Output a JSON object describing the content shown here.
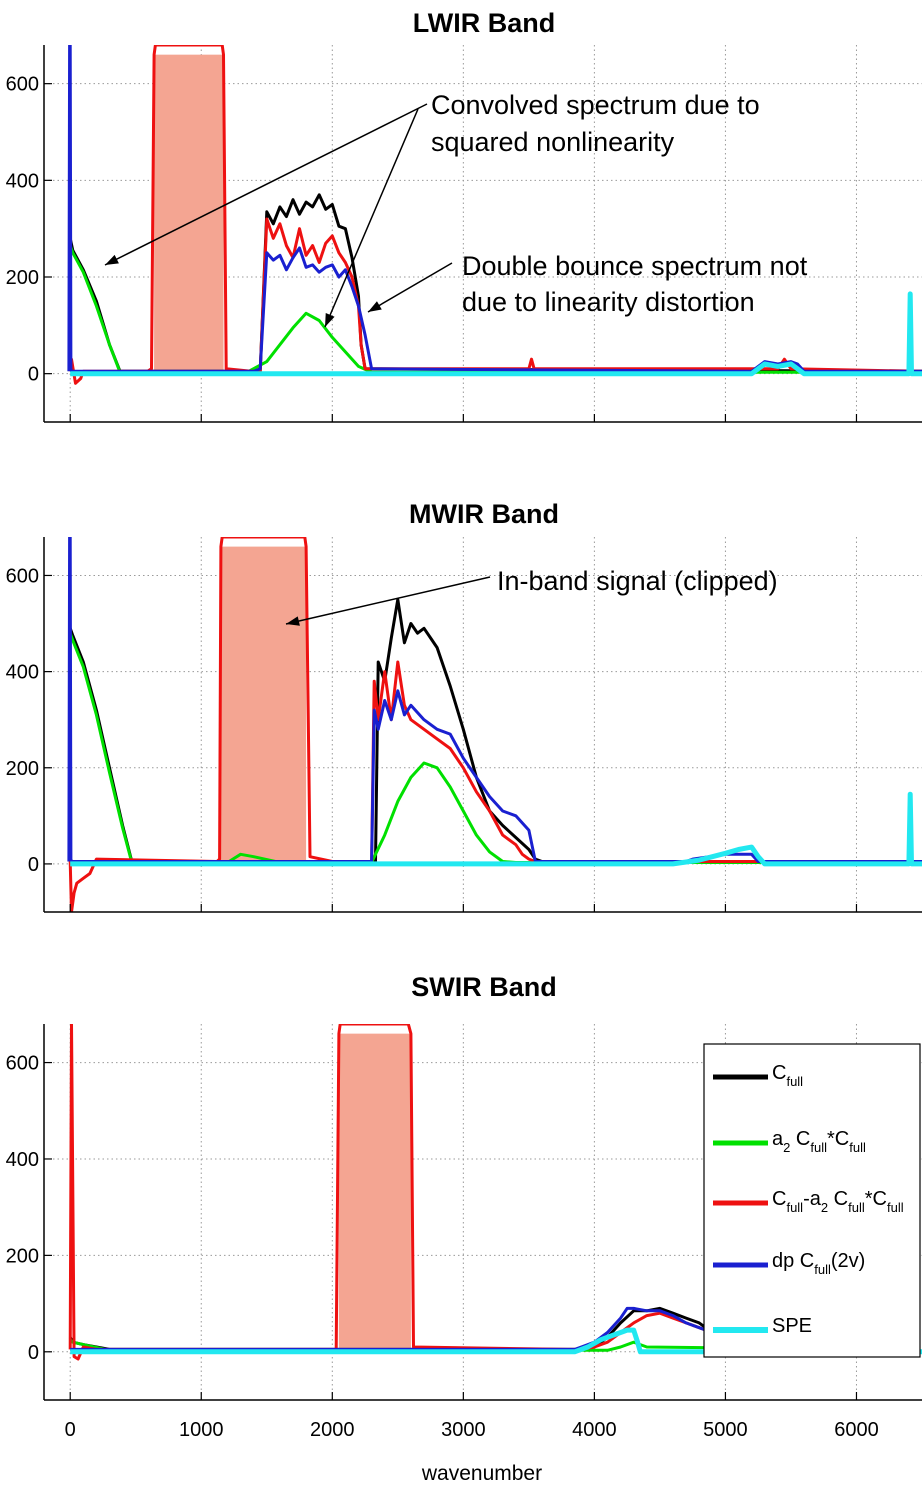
{
  "chart_data": [
    {
      "type": "line",
      "title": "LWIR Band",
      "xlabel": "",
      "ylabel": "",
      "xlim": [
        -200,
        6500
      ],
      "ylim": [
        -100,
        680
      ],
      "yticks": [
        0,
        200,
        400,
        600
      ],
      "xticks": [
        0,
        1000,
        2000,
        3000,
        4000,
        5000,
        6000
      ],
      "grid": true,
      "clipped_band": {
        "x0": 640,
        "x1": 1170,
        "y_top": 660,
        "color": "#f4a592"
      },
      "annotations": [
        {
          "lines": [
            "Convolved spectrum due to",
            "squared nonlinearity"
          ]
        },
        {
          "lines": [
            "Double bounce spectrum not",
            "due to linearity distortion"
          ]
        }
      ],
      "series": [
        {
          "color": "#000000",
          "x": [
            0,
            20,
            100,
            200,
            300,
            380,
            1450,
            1500,
            1550,
            1600,
            1650,
            1700,
            1750,
            1800,
            1850,
            1900,
            1950,
            2000,
            2050,
            2100,
            2150,
            2200,
            2220,
            2250,
            6500
          ],
          "y": [
            280,
            255,
            215,
            150,
            60,
            5,
            5,
            335,
            310,
            345,
            325,
            360,
            330,
            355,
            345,
            370,
            340,
            350,
            305,
            300,
            240,
            160,
            60,
            10,
            5
          ]
        },
        {
          "color": "#00e000",
          "x": [
            0,
            20,
            100,
            200,
            300,
            380,
            1100,
            1350,
            1500,
            1600,
            1700,
            1800,
            1900,
            2000,
            2100,
            2200,
            2300,
            6500
          ],
          "y": [
            265,
            250,
            210,
            140,
            60,
            3,
            3,
            3,
            25,
            60,
            95,
            125,
            110,
            75,
            45,
            15,
            3,
            3
          ]
        },
        {
          "color": "#ee1111",
          "x": [
            0,
            10,
            40,
            80,
            100,
            590,
            620,
            640,
            650,
            1160,
            1170,
            1190,
            1380,
            1400,
            1450,
            1500,
            1550,
            1600,
            1650,
            1700,
            1750,
            1800,
            1850,
            1900,
            1950,
            2000,
            2050,
            2100,
            2150,
            2200,
            2220,
            2250,
            3500,
            3520,
            3540,
            5400,
            5450,
            5500,
            6500
          ],
          "y": [
            5,
            30,
            -20,
            -10,
            5,
            5,
            10,
            660,
            680,
            680,
            660,
            10,
            5,
            5,
            5,
            320,
            280,
            310,
            265,
            240,
            300,
            245,
            265,
            230,
            270,
            285,
            250,
            230,
            200,
            140,
            60,
            10,
            10,
            30,
            10,
            10,
            30,
            10,
            5
          ]
        },
        {
          "color": "#1a20d0",
          "x": [
            -10,
            -5,
            0,
            5,
            10,
            20,
            100,
            1400,
            1450,
            1500,
            1550,
            1600,
            1650,
            1700,
            1750,
            1800,
            1850,
            1900,
            1950,
            2000,
            2050,
            2100,
            2150,
            2200,
            2250,
            2300,
            5200,
            5250,
            5300,
            5400,
            5500,
            5550,
            5600,
            6500
          ],
          "y": [
            5,
            680,
            680,
            10,
            5,
            5,
            5,
            5,
            10,
            250,
            235,
            245,
            215,
            240,
            260,
            220,
            225,
            210,
            220,
            225,
            200,
            215,
            180,
            140,
            80,
            10,
            5,
            15,
            25,
            20,
            25,
            20,
            5,
            5
          ]
        },
        {
          "color": "#22e8f0",
          "x": [
            0,
            5200,
            5250,
            5300,
            5400,
            5500,
            5550,
            5600,
            6400,
            6410,
            6420,
            6500
          ],
          "y": [
            0,
            0,
            10,
            20,
            15,
            20,
            10,
            0,
            0,
            165,
            0,
            0
          ]
        }
      ]
    },
    {
      "type": "line",
      "title": "MWIR Band",
      "xlabel": "",
      "ylabel": "",
      "xlim": [
        -200,
        6500
      ],
      "ylim": [
        -100,
        680
      ],
      "yticks": [
        0,
        200,
        400,
        600
      ],
      "xticks": [
        0,
        1000,
        2000,
        3000,
        4000,
        5000,
        6000
      ],
      "grid": true,
      "clipped_band": {
        "x0": 1150,
        "x1": 1800,
        "y_top": 660,
        "color": "#f4a592"
      },
      "annotations": [
        {
          "lines": [
            "In-band signal (clipped)"
          ]
        }
      ],
      "series": [
        {
          "color": "#000000",
          "x": [
            0,
            20,
            100,
            200,
            300,
            400,
            470,
            2300,
            2330,
            2350,
            2400,
            2450,
            2500,
            2550,
            2600,
            2650,
            2700,
            2750,
            2800,
            2900,
            3000,
            3100,
            3200,
            3300,
            3400,
            3500,
            3550,
            3600,
            6500
          ],
          "y": [
            490,
            475,
            420,
            320,
            200,
            80,
            5,
            5,
            5,
            420,
            380,
            470,
            550,
            460,
            500,
            480,
            490,
            470,
            450,
            370,
            280,
            180,
            110,
            80,
            55,
            30,
            10,
            5,
            5
          ]
        },
        {
          "color": "#00e000",
          "x": [
            0,
            20,
            100,
            200,
            300,
            400,
            470,
            1200,
            1300,
            1400,
            1600,
            2300,
            2400,
            2500,
            2600,
            2700,
            2800,
            2900,
            3000,
            3100,
            3200,
            3300,
            3400,
            6500
          ],
          "y": [
            480,
            465,
            410,
            310,
            190,
            75,
            3,
            3,
            20,
            15,
            3,
            3,
            60,
            130,
            180,
            210,
            200,
            160,
            110,
            60,
            25,
            5,
            3,
            3
          ]
        },
        {
          "color": "#ee1111",
          "x": [
            0,
            10,
            30,
            50,
            100,
            150,
            200,
            1120,
            1140,
            1150,
            1160,
            1790,
            1800,
            1830,
            2000,
            2300,
            2320,
            2350,
            2400,
            2450,
            2500,
            2550,
            2600,
            2700,
            2800,
            2900,
            3000,
            3100,
            3200,
            3300,
            3400,
            3450,
            3500,
            3550,
            6500
          ],
          "y": [
            5,
            -100,
            -60,
            -40,
            -30,
            -20,
            10,
            5,
            10,
            660,
            680,
            680,
            660,
            15,
            5,
            5,
            380,
            300,
            400,
            300,
            420,
            330,
            300,
            280,
            260,
            240,
            200,
            150,
            110,
            60,
            40,
            20,
            10,
            5,
            5
          ]
        },
        {
          "color": "#1a20d0",
          "x": [
            -10,
            -5,
            0,
            5,
            10,
            20,
            2300,
            2320,
            2350,
            2400,
            2450,
            2500,
            2550,
            2600,
            2700,
            2800,
            2900,
            3000,
            3100,
            3200,
            3300,
            3400,
            3500,
            3550,
            4700,
            4750,
            5000,
            5200,
            5250,
            6500
          ],
          "y": [
            5,
            680,
            680,
            10,
            5,
            5,
            5,
            320,
            280,
            340,
            300,
            360,
            310,
            330,
            300,
            280,
            270,
            220,
            180,
            140,
            110,
            100,
            70,
            5,
            5,
            10,
            20,
            20,
            5,
            5
          ]
        },
        {
          "color": "#22e8f0",
          "x": [
            0,
            4600,
            4800,
            5000,
            5100,
            5200,
            5250,
            5300,
            6400,
            6410,
            6420,
            6500
          ],
          "y": [
            0,
            0,
            8,
            22,
            30,
            35,
            15,
            0,
            0,
            145,
            0,
            0
          ]
        }
      ]
    },
    {
      "type": "line",
      "title": "SWIR Band",
      "xlabel": "wavenumber",
      "ylabel": "",
      "xlim": [
        -200,
        6500
      ],
      "ylim": [
        -100,
        680
      ],
      "yticks": [
        0,
        200,
        400,
        600
      ],
      "xticks": [
        0,
        1000,
        2000,
        3000,
        4000,
        5000,
        6000
      ],
      "grid": true,
      "legend_position": "top-right",
      "clipped_band": {
        "x0": 2050,
        "x1": 2600,
        "y_top": 660,
        "color": "#f4a592"
      },
      "series": [
        {
          "name": "C",
          "sub": "full",
          "label": "C_full",
          "color": "#000000",
          "x": [
            0,
            20,
            100,
            200,
            300,
            3900,
            4000,
            4100,
            4200,
            4300,
            4400,
            4500,
            4600,
            4700,
            4800,
            4900,
            5000
          ],
          "y": [
            30,
            20,
            15,
            10,
            5,
            5,
            10,
            30,
            60,
            85,
            85,
            90,
            80,
            70,
            60,
            40,
            20
          ]
        },
        {
          "name": "a",
          "sub": "2",
          "label": "a_2 C_full*C_full",
          "color": "#00e000",
          "x": [
            0,
            20,
            100,
            300,
            4100,
            4200,
            4300,
            4400,
            5000
          ],
          "y": [
            25,
            20,
            15,
            3,
            3,
            10,
            20,
            10,
            8
          ]
        },
        {
          "name": "C",
          "sub": "full",
          "label": "C_full-a_2 C_full*C_full",
          "color": "#ee1111",
          "x": [
            0,
            10,
            30,
            60,
            100,
            200,
            2030,
            2050,
            2060,
            2580,
            2600,
            2620,
            3800,
            3900,
            4000,
            4100,
            4200,
            4300,
            4400,
            4500,
            4600,
            4700,
            4800,
            4900,
            5000
          ],
          "y": [
            5,
            680,
            -10,
            -15,
            10,
            5,
            5,
            660,
            680,
            680,
            660,
            10,
            5,
            5,
            10,
            20,
            40,
            60,
            75,
            80,
            70,
            60,
            50,
            40,
            20
          ]
        },
        {
          "name": "dp C",
          "sub": "full",
          "label": "dp C_full(2v)",
          "color": "#1a20d0",
          "x": [
            0,
            3850,
            3900,
            4000,
            4100,
            4200,
            4250,
            4300,
            4400,
            4500,
            4600,
            4700,
            4800,
            4900,
            5000
          ],
          "y": [
            5,
            5,
            10,
            20,
            40,
            70,
            90,
            90,
            85,
            85,
            75,
            60,
            50,
            40,
            20
          ]
        },
        {
          "name": "SPE",
          "sub": "",
          "label": "SPE",
          "color": "#22e8f0",
          "x": [
            0,
            3850,
            3950,
            4050,
            4150,
            4250,
            4300,
            4330,
            4350,
            6500
          ],
          "y": [
            0,
            0,
            10,
            25,
            35,
            45,
            45,
            20,
            0,
            0
          ]
        }
      ]
    }
  ],
  "legend": {
    "entries": [
      {
        "color": "#000000",
        "parts": [
          [
            "C",
            "full",
            ""
          ]
        ]
      },
      {
        "color": "#00e000",
        "parts": [
          [
            "a",
            "2",
            ""
          ],
          [
            " C",
            "full",
            "*"
          ],
          [
            "C",
            "full",
            ""
          ]
        ]
      },
      {
        "color": "#ee1111",
        "parts": [
          [
            "C",
            "full",
            "-"
          ],
          [
            "a",
            "2",
            ""
          ],
          [
            " C",
            "full",
            "*"
          ],
          [
            "C",
            "full",
            ""
          ]
        ]
      },
      {
        "color": "#1a20d0",
        "parts": [
          [
            "dp C",
            "full",
            "(2v)"
          ]
        ]
      },
      {
        "color": "#22e8f0",
        "parts": [
          [
            "SPE",
            "",
            ""
          ]
        ]
      }
    ]
  }
}
